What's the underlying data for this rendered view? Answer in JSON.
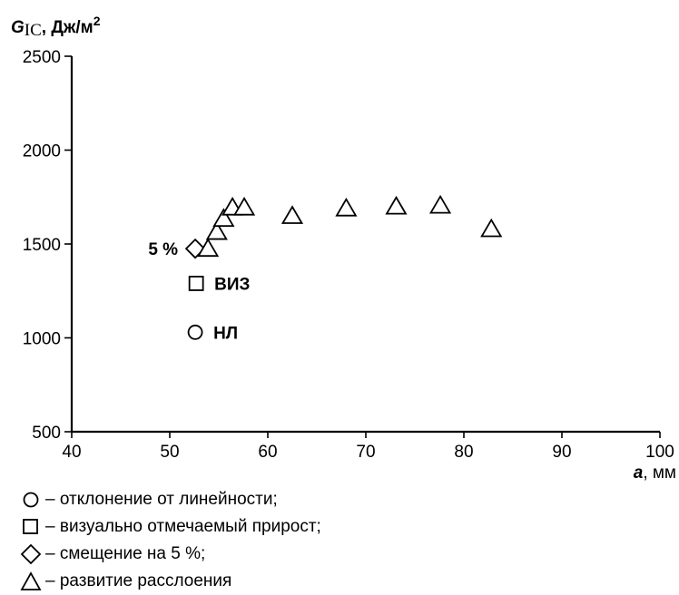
{
  "chart_data": {
    "type": "scatter",
    "title": "",
    "ylabel": {
      "symbol": "G",
      "subscript": "IC",
      "unit": ", Дж/м",
      "sup": "2"
    },
    "xlabel": {
      "symbol": "a",
      "unit": ", мм"
    },
    "xlim": [
      40,
      100
    ],
    "ylim": [
      500,
      2500
    ],
    "xticks": [
      40,
      50,
      60,
      70,
      80,
      90,
      100
    ],
    "yticks": [
      500,
      1000,
      1500,
      2000,
      2500
    ],
    "grid": false,
    "series": [
      {
        "marker": "circle",
        "points": [
          {
            "x": 52.6,
            "y": 1030
          }
        ]
      },
      {
        "marker": "square",
        "points": [
          {
            "x": 52.7,
            "y": 1290
          }
        ]
      },
      {
        "marker": "diamond",
        "points": [
          {
            "x": 52.6,
            "y": 1475
          }
        ]
      },
      {
        "marker": "triangle",
        "points": [
          {
            "x": 53.9,
            "y": 1470
          },
          {
            "x": 54.8,
            "y": 1560
          },
          {
            "x": 55.5,
            "y": 1630
          },
          {
            "x": 56.4,
            "y": 1690
          },
          {
            "x": 57.6,
            "y": 1690
          },
          {
            "x": 62.5,
            "y": 1645
          },
          {
            "x": 68.0,
            "y": 1685
          },
          {
            "x": 73.1,
            "y": 1695
          },
          {
            "x": 77.6,
            "y": 1700
          },
          {
            "x": 82.8,
            "y": 1575
          }
        ]
      }
    ],
    "annotations": [
      {
        "text": "5 %",
        "x": 52.6,
        "y": 1475,
        "side": "left"
      },
      {
        "text": "ВИЗ",
        "x": 52.7,
        "y": 1290,
        "side": "right"
      },
      {
        "text": "НЛ",
        "x": 52.6,
        "y": 1030,
        "side": "right"
      }
    ],
    "legend": [
      {
        "marker": "circle",
        "label": "– отклонение от линейности;"
      },
      {
        "marker": "square",
        "label": "– визуально отмечаемый прирост;"
      },
      {
        "marker": "diamond",
        "label": "– смещение  на 5 %;"
      },
      {
        "marker": "triangle",
        "label": "– развитие расслоения"
      }
    ]
  }
}
